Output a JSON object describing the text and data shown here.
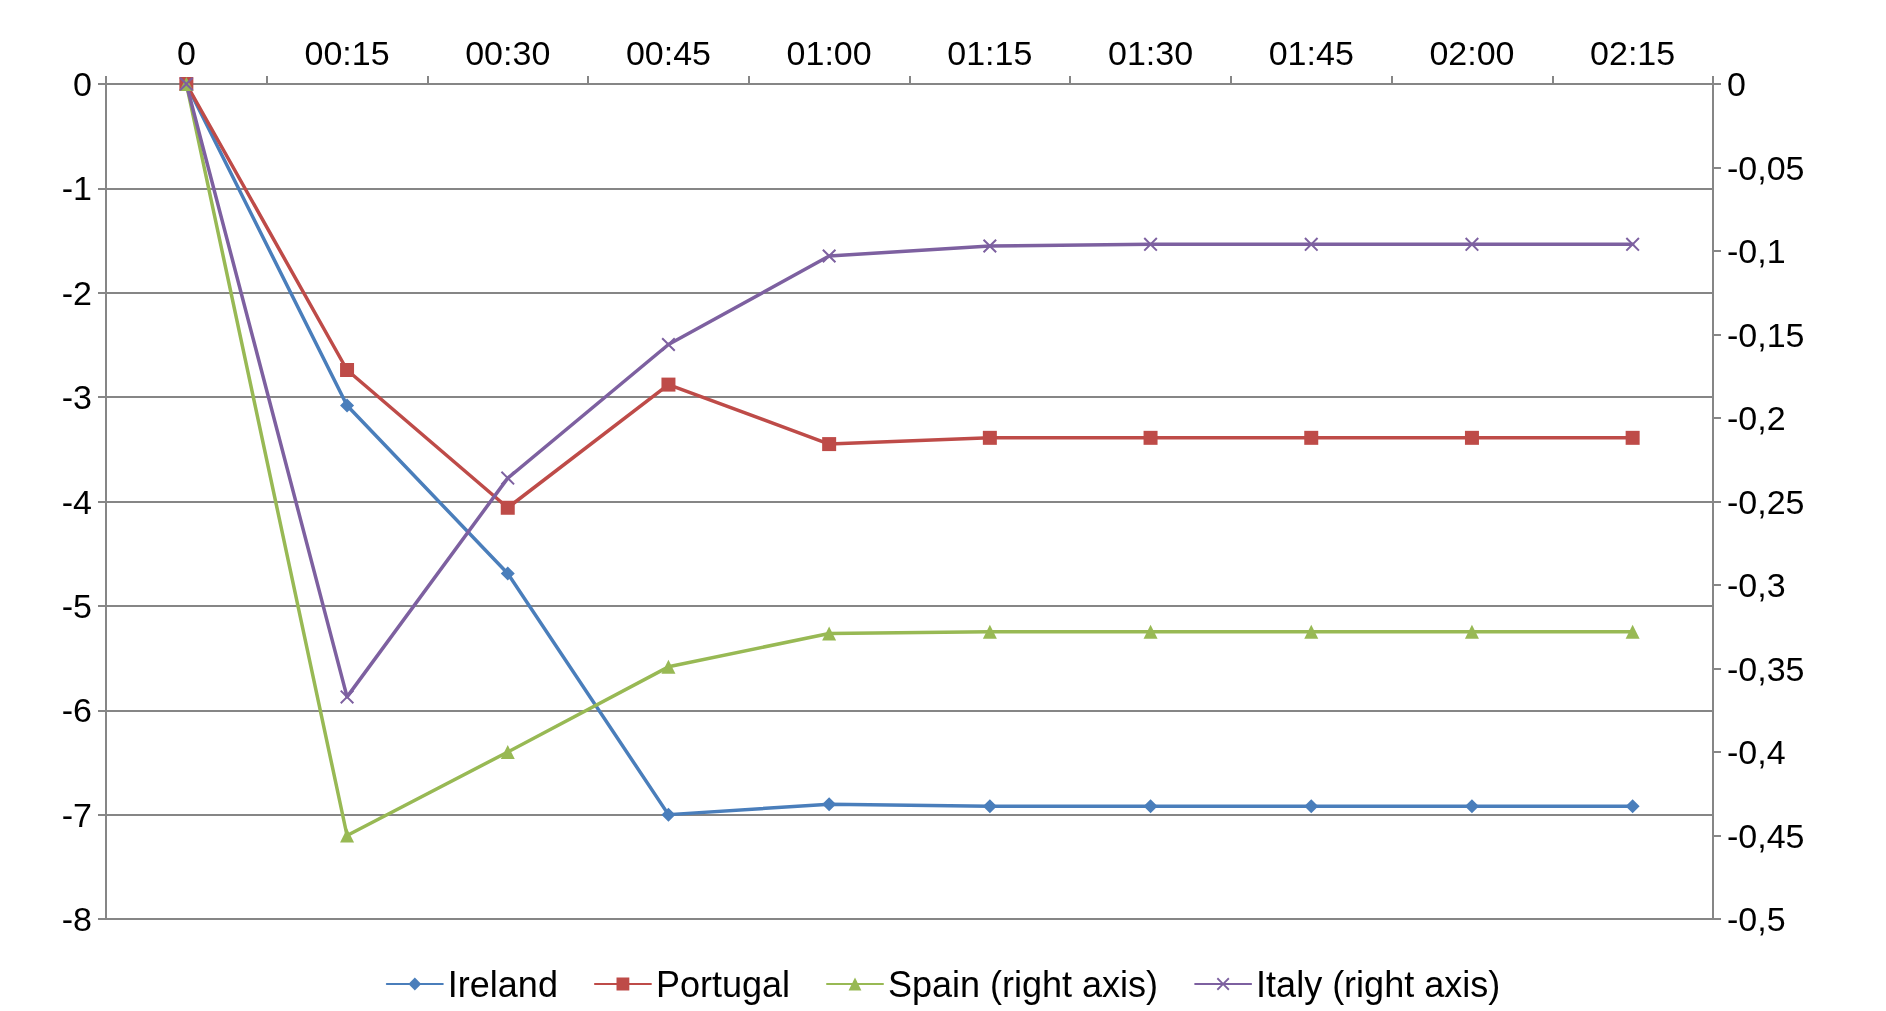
{
  "chart_data": {
    "type": "line",
    "categories": [
      "0",
      "00:15",
      "00:30",
      "00:45",
      "01:00",
      "01:15",
      "01:30",
      "01:45",
      "02:00",
      "02:15"
    ],
    "series": [
      {
        "name": "Ireland",
        "color": "#4a7ebb",
        "marker": "diamond",
        "values": [
          0,
          -3.08,
          -4.69,
          -7.0,
          -6.9,
          -6.92,
          -6.92,
          -6.92,
          -6.92,
          -6.92
        ]
      },
      {
        "name": "Portugal",
        "color": "#be4b48",
        "marker": "square",
        "values": [
          0,
          -2.74,
          -4.06,
          -2.88,
          -3.45,
          -3.39,
          -3.39,
          -3.39,
          -3.39,
          -3.39
        ]
      },
      {
        "name": "Spain (right axis)",
        "color": "#98b954",
        "marker": "triangle",
        "axis": "y2",
        "values": [
          0,
          -0.45,
          -0.4,
          -0.349,
          -0.329,
          -0.328,
          -0.328,
          -0.328,
          -0.328,
          -0.328
        ]
      },
      {
        "name": "Italy (right axis)",
        "color": "#7d60a0",
        "marker": "cross",
        "axis": "y2",
        "values": [
          0,
          -0.367,
          -0.236,
          -0.156,
          -0.103,
          -0.097,
          -0.096,
          -0.096,
          -0.096,
          -0.096
        ]
      }
    ],
    "ylim": [
      -8,
      0
    ],
    "yticks": [
      -8,
      -7,
      -6,
      -5,
      -4,
      -3,
      -2,
      -1,
      0
    ],
    "y2lim": [
      -0.5,
      0
    ],
    "y2ticks": [
      {
        "value": -0.5,
        "label": "-0,5"
      },
      {
        "value": -0.45,
        "label": "-0,45"
      },
      {
        "value": -0.4,
        "label": "-0,4"
      },
      {
        "value": -0.35,
        "label": "-0,35"
      },
      {
        "value": -0.3,
        "label": "-0,3"
      },
      {
        "value": -0.25,
        "label": "-0,25"
      },
      {
        "value": -0.2,
        "label": "-0,2"
      },
      {
        "value": -0.15,
        "label": "-0,15"
      },
      {
        "value": -0.1,
        "label": "-0,1"
      },
      {
        "value": -0.05,
        "label": "-0,05"
      },
      0
    ],
    "grid": "y",
    "legend": "bottom",
    "line_style": "solid"
  }
}
